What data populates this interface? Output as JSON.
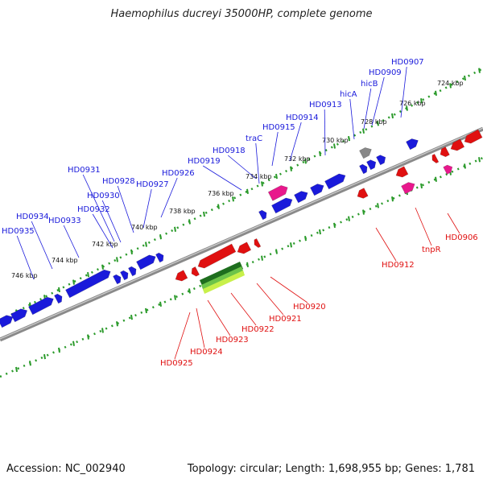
{
  "title": "Haemophilus ducreyi 35000HP, complete genome",
  "footer": {
    "accession": "Accession: NC_002940",
    "stats": "Topology: circular; Length: 1,698,955 bp; Genes: 1,781"
  },
  "colors": {
    "forward_gene": "#1a1adb",
    "reverse_gene": "#e01010",
    "mobile_element": "#e8188c",
    "rna": "#2a8a2a",
    "pseudo": "#888888",
    "backbone": "#8a8a8a",
    "ruler": "#2a9a2a"
  },
  "ruler_labels": [
    "724 kbp",
    "726 kbp",
    "728 kbp",
    "730 kbp",
    "732 kbp",
    "734 kbp",
    "736 kbp",
    "738 kbp",
    "740 kbp",
    "742 kbp",
    "744 kbp",
    "746 kbp"
  ],
  "forward_labels": [
    "HD0907",
    "HD0909",
    "hicB",
    "hicA",
    "HD0913",
    "HD0914",
    "HD0915",
    "traC",
    "HD0918",
    "HD0919",
    "HD0926",
    "HD0927",
    "HD0928",
    "HD0931",
    "HD0930",
    "HD0932",
    "HD0933",
    "HD0934",
    "HD0935"
  ],
  "reverse_labels": [
    "HD0906",
    "tnpR",
    "HD0912",
    "HD0920",
    "HD0921",
    "HD0922",
    "HD0923",
    "HD0924",
    "HD0925"
  ]
}
